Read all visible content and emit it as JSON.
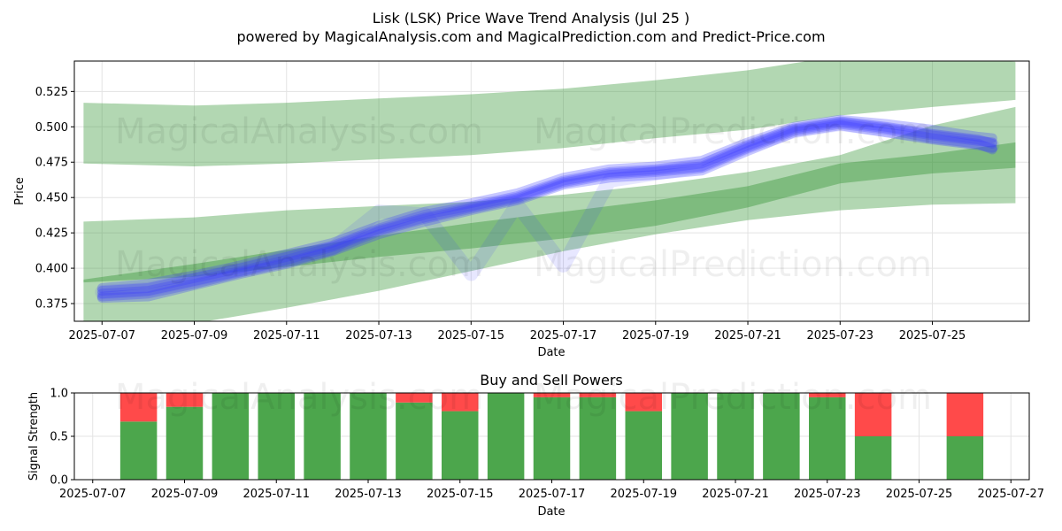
{
  "watermarks": [
    "MagicalAnalysis.com",
    "MagicalPrediction.com"
  ],
  "chart_data": [
    {
      "type": "line",
      "title": "Lisk (LSK) Price Wave Trend Analysis (Jul 25 )",
      "subtitle": "powered by MagicalAnalysis.com and MagicalPrediction.com and Predict-Price.com",
      "xlabel": "Date",
      "ylabel": "Price",
      "xlim": [
        -0.6,
        20.1
      ],
      "ylim": [
        0.3625,
        0.5465
      ],
      "yticks": [
        0.375,
        0.4,
        0.425,
        0.45,
        0.475,
        0.5,
        0.525
      ],
      "ytick_labels": [
        "0.375",
        "0.400",
        "0.425",
        "0.450",
        "0.475",
        "0.500",
        "0.525"
      ],
      "xticks": [
        0,
        2,
        4,
        6,
        8,
        10,
        12,
        14,
        16,
        18
      ],
      "xtick_labels": [
        "2025-07-07",
        "2025-07-09",
        "2025-07-11",
        "2025-07-13",
        "2025-07-15",
        "2025-07-17",
        "2025-07-19",
        "2025-07-21",
        "2025-07-23",
        "2025-07-25"
      ],
      "grid": true,
      "green_bands": [
        {
          "name": "upper-channel",
          "x": [
            -0.4,
            2,
            4,
            6,
            8,
            10,
            12,
            14,
            16,
            18,
            19.8
          ],
          "upper": [
            0.517,
            0.515,
            0.517,
            0.52,
            0.523,
            0.527,
            0.533,
            0.54,
            0.55,
            0.55,
            0.546
          ],
          "lower": [
            0.474,
            0.472,
            0.474,
            0.477,
            0.48,
            0.485,
            0.492,
            0.498,
            0.508,
            0.514,
            0.519
          ]
        },
        {
          "name": "lower-channel",
          "x": [
            -0.4,
            2,
            4,
            6,
            8,
            10,
            12,
            14,
            16,
            18,
            19.8
          ],
          "upper": [
            0.433,
            0.436,
            0.441,
            0.444,
            0.447,
            0.452,
            0.459,
            0.468,
            0.48,
            0.501,
            0.514
          ],
          "lower": [
            0.355,
            0.361,
            0.372,
            0.384,
            0.398,
            0.412,
            0.424,
            0.434,
            0.441,
            0.445,
            0.446
          ]
        },
        {
          "name": "trend-band",
          "x": [
            -0.4,
            2,
            4,
            6,
            8,
            10,
            12,
            14,
            16,
            18,
            19.8
          ],
          "upper": [
            0.392,
            0.403,
            0.413,
            0.423,
            0.432,
            0.44,
            0.448,
            0.458,
            0.474,
            0.481,
            0.489
          ],
          "lower": [
            0.39,
            0.394,
            0.401,
            0.408,
            0.414,
            0.421,
            0.43,
            0.443,
            0.46,
            0.467,
            0.471
          ]
        }
      ],
      "wave_series": [
        {
          "name": "wave-1",
          "x": [
            0,
            1,
            2,
            3,
            4,
            5,
            6,
            7,
            8,
            9,
            10,
            11,
            12,
            13,
            14,
            15,
            16,
            17,
            18,
            19,
            19.3
          ],
          "y": [
            0.382,
            0.384,
            0.391,
            0.398,
            0.406,
            0.415,
            0.427,
            0.436,
            0.443,
            0.45,
            0.461,
            0.467,
            0.469,
            0.472,
            0.486,
            0.498,
            0.503,
            0.499,
            0.494,
            0.49,
            0.489
          ]
        },
        {
          "name": "wave-2",
          "x": [
            0,
            1,
            2,
            3,
            4,
            5,
            6,
            7,
            8,
            9,
            10,
            11,
            12,
            13,
            14,
            15,
            16,
            17,
            18,
            19,
            19.3
          ],
          "y": [
            0.386,
            0.389,
            0.395,
            0.402,
            0.41,
            0.418,
            0.43,
            0.44,
            0.446,
            0.453,
            0.464,
            0.47,
            0.472,
            0.476,
            0.489,
            0.5,
            0.505,
            0.502,
            0.498,
            0.493,
            0.492
          ]
        },
        {
          "name": "wave-3",
          "x": [
            0,
            1,
            2,
            3,
            4,
            5,
            6,
            7,
            8,
            9,
            10,
            11,
            12,
            13,
            14,
            15,
            16,
            17,
            18,
            19,
            19.3
          ],
          "y": [
            0.379,
            0.38,
            0.388,
            0.396,
            0.403,
            0.412,
            0.424,
            0.433,
            0.441,
            0.448,
            0.459,
            0.464,
            0.466,
            0.469,
            0.483,
            0.496,
            0.501,
            0.496,
            0.491,
            0.487,
            0.485
          ]
        },
        {
          "name": "wave-4",
          "x": [
            0,
            1,
            2,
            3,
            4,
            5,
            6,
            7,
            8,
            9,
            10,
            11,
            12,
            13,
            14,
            15,
            16,
            17,
            18,
            19,
            19.3
          ],
          "y": [
            0.384,
            0.386,
            0.393,
            0.4,
            0.408,
            0.416,
            0.428,
            0.438,
            0.444,
            0.451,
            0.462,
            0.468,
            0.47,
            0.474,
            0.487,
            0.499,
            0.504,
            0.5,
            0.495,
            0.491,
            0.488
          ]
        },
        {
          "name": "wave-5",
          "x": [
            0,
            1,
            2,
            3,
            4,
            5,
            6,
            7,
            8,
            9,
            10,
            11,
            12,
            13,
            14,
            15,
            16,
            17,
            18,
            19,
            19.3
          ],
          "y": [
            0.38,
            0.382,
            0.389,
            0.397,
            0.404,
            0.413,
            0.426,
            0.435,
            0.442,
            0.449,
            0.46,
            0.466,
            0.468,
            0.471,
            0.485,
            0.497,
            0.502,
            0.498,
            0.492,
            0.488,
            0.484
          ]
        },
        {
          "name": "wave-dip",
          "x": [
            0,
            1,
            2,
            3,
            4,
            5,
            6,
            7,
            8,
            9,
            10,
            11,
            12,
            13,
            14,
            15,
            16,
            17,
            18,
            19,
            19.3
          ],
          "y": [
            0.383,
            0.385,
            0.392,
            0.399,
            0.407,
            0.414,
            0.44,
            0.438,
            0.396,
            0.445,
            0.402,
            0.462,
            0.467,
            0.472,
            0.486,
            0.497,
            0.502,
            0.498,
            0.493,
            0.489,
            0.487
          ]
        }
      ]
    },
    {
      "type": "bar",
      "title": "Buy and Sell Powers",
      "xlabel": "Date",
      "ylabel": "Signal Strength",
      "xlim": [
        -0.4,
        20.4
      ],
      "ylim": [
        0,
        1.0
      ],
      "yticks": [
        0.0,
        0.5,
        1.0
      ],
      "ytick_labels": [
        "0.0",
        "0.5",
        "1.0"
      ],
      "xticks": [
        0,
        2,
        4,
        6,
        8,
        10,
        12,
        14,
        16,
        18,
        20
      ],
      "xtick_labels": [
        "2025-07-07",
        "2025-07-09",
        "2025-07-11",
        "2025-07-13",
        "2025-07-15",
        "2025-07-17",
        "2025-07-19",
        "2025-07-21",
        "2025-07-23",
        "2025-07-25",
        "2025-07-27"
      ],
      "grid": true,
      "x": [
        1,
        2,
        3,
        4,
        5,
        6,
        7,
        8,
        9,
        10,
        11,
        12,
        13,
        14,
        15,
        16,
        17,
        18,
        19
      ],
      "series": [
        {
          "name": "buy",
          "color": "#4ca64c",
          "values": [
            0.67,
            0.84,
            1.0,
            1.0,
            1.0,
            1.0,
            0.89,
            0.79,
            1.0,
            0.95,
            0.95,
            0.79,
            1.0,
            1.0,
            1.0,
            0.95,
            0.5,
            0,
            0.5
          ]
        },
        {
          "name": "sell",
          "color": "#ff4a4a",
          "values": [
            0.33,
            0.16,
            0,
            0,
            0,
            0,
            0.11,
            0.21,
            0,
            0.05,
            0.05,
            0.21,
            0,
            0,
            0,
            0.05,
            0.5,
            0,
            0.5
          ]
        }
      ]
    }
  ]
}
